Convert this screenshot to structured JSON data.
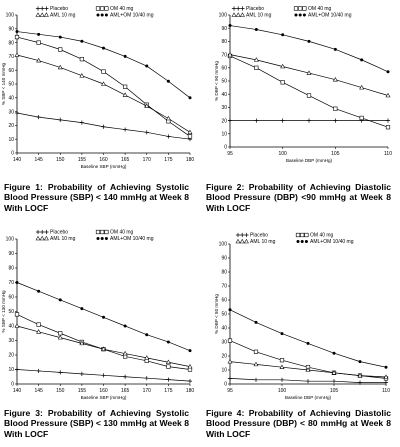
{
  "legend_labels": [
    "Placebo",
    "OM 40 mg",
    "AML 10 mg",
    "AML+OM 10/40 mg"
  ],
  "captions": [
    "Figure 1: Probability of Achieving Systolic Blood Pressure (SBP) < 140 mmHg at Week 8 With LOCF",
    "Figure 2: Probability of Achieving Diastolic Blood Pressure (DBP) <90 mmHg at Week 8 With LOCF",
    "Figure 3: Probability of Achieving Systolic Blood Pressure (SBP) < 130 mmHg at Week 8 With LOCF",
    "Figure 4: Probability of Achieving Diastolic Blood Pressure (DBP) < 80 mmHg at Week 8 With LOCF"
  ],
  "chart_data": [
    {
      "type": "line",
      "title": "",
      "xlabel": "Baseline SBP (mmHg)",
      "ylabel": "% SBP < 140 mmHg",
      "xlim": [
        140,
        180
      ],
      "ylim": [
        0,
        100
      ],
      "xticks": [
        140,
        145,
        150,
        155,
        160,
        165,
        170,
        175,
        180
      ],
      "yticks": [
        0,
        10,
        20,
        30,
        40,
        50,
        60,
        70,
        80,
        90,
        100
      ],
      "x": [
        140,
        145,
        150,
        155,
        160,
        165,
        170,
        175,
        180
      ],
      "series": [
        {
          "name": "Placebo",
          "marker": "plus",
          "values": [
            29,
            26,
            24,
            22,
            19,
            17,
            15,
            12,
            10
          ]
        },
        {
          "name": "OM 40 mg",
          "marker": "square",
          "values": [
            84,
            80,
            75,
            68,
            59,
            48,
            35,
            23,
            12
          ]
        },
        {
          "name": "AML 10 mg",
          "marker": "triangle",
          "values": [
            71,
            67,
            62,
            56,
            50,
            42,
            34,
            25,
            15
          ]
        },
        {
          "name": "AML+OM 10/40 mg",
          "marker": "dot",
          "values": [
            88,
            86,
            84,
            81,
            76,
            70,
            63,
            52,
            40
          ]
        }
      ]
    },
    {
      "type": "line",
      "title": "",
      "xlabel": "Baseline DBP (mmHg)",
      "ylabel": "% DBP < 90 mmHg",
      "xlim": [
        95,
        110
      ],
      "ylim": [
        0,
        100
      ],
      "xticks": [
        95,
        100,
        105,
        110
      ],
      "yticks": [
        0,
        10,
        20,
        30,
        40,
        50,
        60,
        70,
        80,
        90,
        100
      ],
      "x": [
        95,
        97.5,
        100,
        102.5,
        105,
        107.5,
        110
      ],
      "series": [
        {
          "name": "Placebo",
          "marker": "plus",
          "values": [
            20,
            20,
            20,
            20,
            20,
            20,
            20
          ]
        },
        {
          "name": "OM 40 mg",
          "marker": "square",
          "values": [
            69,
            60,
            49,
            39,
            29,
            22,
            15
          ]
        },
        {
          "name": "AML 10 mg",
          "marker": "triangle",
          "values": [
            70,
            66,
            61,
            56,
            51,
            45,
            39
          ]
        },
        {
          "name": "AML+OM 10/40 mg",
          "marker": "dot",
          "values": [
            92,
            89,
            85,
            80,
            74,
            66,
            57
          ]
        }
      ]
    },
    {
      "type": "line",
      "title": "",
      "xlabel": "Baseline SBP (mmHg)",
      "ylabel": "% SBP < 130 mmHg",
      "xlim": [
        140,
        180
      ],
      "ylim": [
        0,
        100
      ],
      "xticks": [
        140,
        145,
        150,
        155,
        160,
        165,
        170,
        175,
        180
      ],
      "yticks": [
        0,
        10,
        20,
        30,
        40,
        50,
        60,
        70,
        80,
        90,
        100
      ],
      "x": [
        140,
        145,
        150,
        155,
        160,
        165,
        170,
        175,
        180
      ],
      "series": [
        {
          "name": "Placebo",
          "marker": "plus",
          "values": [
            10,
            9,
            8,
            7,
            6,
            5,
            4,
            3,
            2
          ]
        },
        {
          "name": "OM 40 mg",
          "marker": "square",
          "values": [
            48,
            41,
            35,
            29,
            24,
            19,
            16,
            12,
            10
          ]
        },
        {
          "name": "AML 10 mg",
          "marker": "triangle",
          "values": [
            40,
            36,
            32,
            28,
            24,
            21,
            18,
            15,
            12
          ]
        },
        {
          "name": "AML+OM 10/40 mg",
          "marker": "dot",
          "values": [
            70,
            64,
            58,
            52,
            46,
            40,
            34,
            29,
            23
          ]
        }
      ]
    },
    {
      "type": "line",
      "title": "",
      "xlabel": "Baseline DBP (mmHg)",
      "ylabel": "% DBP < 80 mmHg",
      "xlim": [
        95,
        110
      ],
      "ylim": [
        0,
        100
      ],
      "xticks": [
        95,
        100,
        105,
        110
      ],
      "yticks": [
        0,
        10,
        20,
        30,
        40,
        50,
        60,
        70,
        80,
        90,
        100
      ],
      "x": [
        95,
        97.5,
        100,
        102.5,
        105,
        107.5,
        110
      ],
      "series": [
        {
          "name": "Placebo",
          "marker": "plus",
          "values": [
            4,
            3,
            3,
            2,
            2,
            1,
            1
          ]
        },
        {
          "name": "OM 40 mg",
          "marker": "square",
          "values": [
            31,
            23,
            17,
            12,
            8,
            6,
            4
          ]
        },
        {
          "name": "AML 10 mg",
          "marker": "triangle",
          "values": [
            16,
            14,
            12,
            10,
            8,
            6,
            5
          ]
        },
        {
          "name": "AML+OM 10/40 mg",
          "marker": "dot",
          "values": [
            53,
            44,
            36,
            29,
            22,
            16,
            12
          ]
        }
      ]
    }
  ]
}
